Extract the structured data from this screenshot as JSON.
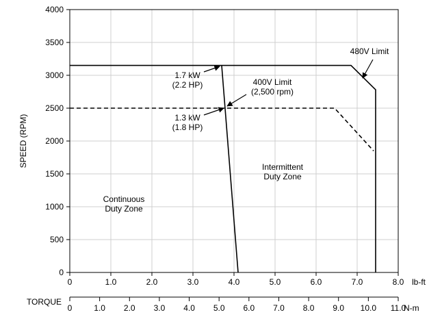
{
  "chart_data": {
    "type": "line",
    "ylabel": "SPEED (RPM)",
    "ylim": [
      0,
      4000
    ],
    "y_ticks": [
      "0",
      "500",
      "1000",
      "1500",
      "2000",
      "2500",
      "3000",
      "3500",
      "4000"
    ],
    "x_axis_lbft": {
      "xlim": [
        0,
        8
      ],
      "unit": "lb-ft",
      "ticks": [
        "0",
        "1.0",
        "2.0",
        "3.0",
        "4.0",
        "5.0",
        "6.0",
        "7.0",
        "8.0"
      ]
    },
    "x_axis_nm": {
      "title": "TORQUE",
      "unit": "N-m",
      "ticks": [
        "0",
        "1.0",
        "2.0",
        "3.0",
        "4.0",
        "5.0",
        "6.0",
        "7.0",
        "8.0",
        "9.0",
        "10.0",
        "11.0"
      ]
    },
    "grid": true,
    "series": [
      {
        "style": "solid",
        "x": [
          0,
          6.85,
          7.45,
          7.45
        ],
        "y": [
          3150,
          3150,
          2780,
          0
        ]
      },
      {
        "style": "dashed",
        "x": [
          0,
          6.45,
          7.4
        ],
        "y": [
          2500,
          2500,
          1850
        ]
      },
      {
        "style": "solid",
        "x": [
          3.7,
          4.1
        ],
        "y": [
          3150,
          0
        ]
      }
    ],
    "annotations": [
      {
        "id": "ann-17kw",
        "lines": [
          "1.7 kW",
          "(2.2 HP)"
        ]
      },
      {
        "id": "ann-13kw",
        "lines": [
          "1.3 kW",
          "(1.8 HP)"
        ]
      },
      {
        "id": "ann-400v",
        "lines": [
          "400V Limit",
          "(2,500 rpm)"
        ]
      },
      {
        "id": "ann-480v",
        "lines": [
          "480V Limit"
        ]
      },
      {
        "id": "ann-intermittent",
        "lines": [
          "Intermittent",
          "Duty Zone"
        ]
      },
      {
        "id": "ann-continuous",
        "lines": [
          "Continuous",
          "Duty Zone"
        ]
      }
    ]
  }
}
